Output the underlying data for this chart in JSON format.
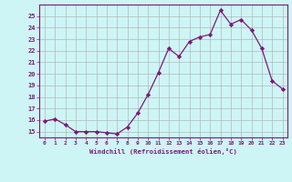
{
  "x": [
    0,
    1,
    2,
    3,
    4,
    5,
    6,
    7,
    8,
    9,
    10,
    11,
    12,
    13,
    14,
    15,
    16,
    17,
    18,
    19,
    20,
    21,
    22,
    23
  ],
  "y": [
    15.9,
    16.1,
    15.6,
    15.0,
    15.0,
    15.0,
    14.9,
    14.8,
    15.4,
    16.6,
    18.2,
    20.1,
    22.2,
    21.5,
    22.8,
    23.2,
    23.4,
    25.5,
    24.3,
    24.7,
    23.8,
    22.2,
    19.4,
    18.7
  ],
  "line_color": "#7b1a7b",
  "marker": "D",
  "marker_size": 2.2,
  "bg_color": "#cef5f5",
  "grid_color": "#aaaaaa",
  "xlabel": "Windchill (Refroidissement éolien,°C)",
  "ylabel_ticks": [
    15,
    16,
    17,
    18,
    19,
    20,
    21,
    22,
    23,
    24,
    25
  ],
  "xlim": [
    -0.5,
    23.5
  ],
  "ylim": [
    14.5,
    26.0
  ],
  "xlabel_color": "#7b1a7b",
  "tick_color": "#7b1a7b",
  "axis_color": "#7b1a7b"
}
